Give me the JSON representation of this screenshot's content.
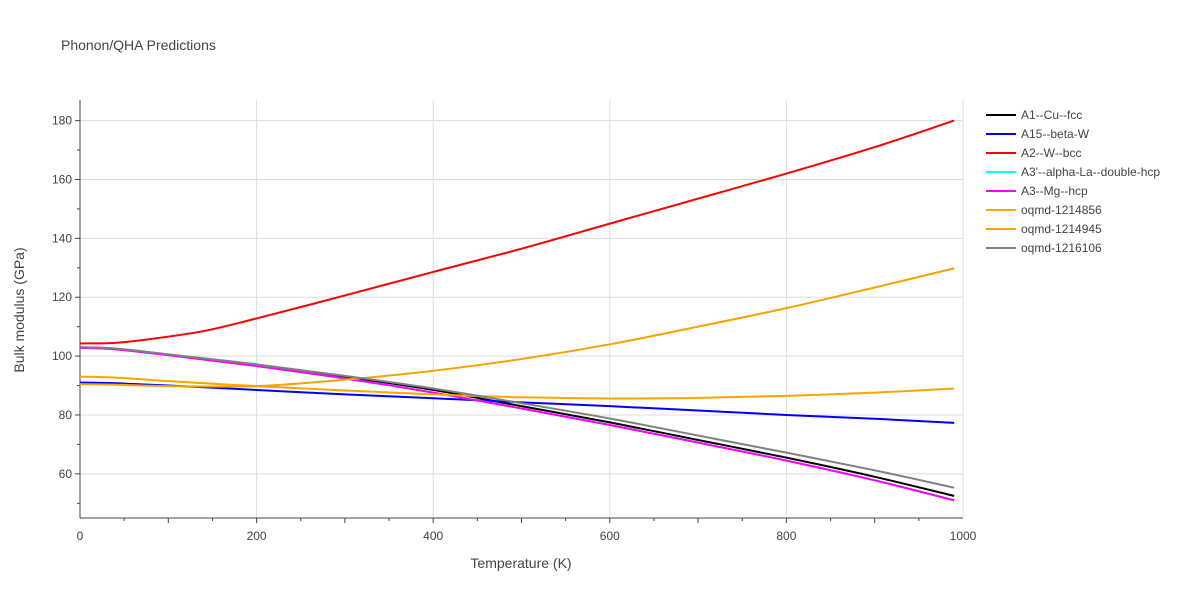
{
  "chart_data": {
    "type": "line",
    "title": "Phonon/QHA Predictions",
    "xlabel": "Temperature (K)",
    "ylabel": "Bulk modulus (GPa)",
    "xlim": [
      0,
      1000
    ],
    "ylim": [
      45,
      187
    ],
    "x_ticks": [
      0,
      200,
      400,
      600,
      800,
      1000
    ],
    "y_ticks": [
      60,
      80,
      100,
      120,
      140,
      160,
      180
    ],
    "grid": true,
    "legend_position": "right",
    "series": [
      {
        "name": "A1--Cu--fcc",
        "color": "#000000",
        "x": [
          0,
          40,
          100,
          200,
          300,
          400,
          500,
          600,
          700,
          800,
          900,
          990
        ],
        "y": [
          103,
          102.5,
          100.5,
          97,
          93,
          88.5,
          83,
          77.5,
          71.5,
          65.5,
          59,
          52.5
        ]
      },
      {
        "name": "A15--beta-W",
        "color": "#0000ff",
        "x": [
          0,
          40,
          100,
          200,
          300,
          400,
          500,
          600,
          700,
          800,
          900,
          990
        ],
        "y": [
          91,
          90.8,
          90,
          88.5,
          87,
          85.7,
          84.3,
          83,
          81.5,
          80,
          78.7,
          77.3
        ]
      },
      {
        "name": "A2--W--bcc",
        "color": "#ff0000",
        "x": [
          0,
          40,
          80,
          140,
          200,
          300,
          400,
          500,
          600,
          700,
          800,
          900,
          990
        ],
        "y": [
          104.3,
          104.5,
          105.8,
          108.5,
          112.8,
          120.6,
          128.6,
          136.5,
          145,
          153.5,
          162,
          171,
          180
        ]
      },
      {
        "name": "A3'--alpha-La--double-hcp",
        "color": "#00ffff",
        "x": [
          0,
          40,
          100,
          200,
          300,
          400,
          500,
          600,
          700,
          800,
          900,
          990
        ],
        "y": [
          102.8,
          102.3,
          100.3,
          96.6,
          92.4,
          87.6,
          82.2,
          76.6,
          70.6,
          64.5,
          57.8,
          51
        ]
      },
      {
        "name": "A3--Mg--hcp",
        "color": "#ff00ff",
        "x": [
          0,
          40,
          100,
          200,
          300,
          400,
          500,
          600,
          700,
          800,
          900,
          990
        ],
        "y": [
          102.8,
          102.3,
          100.3,
          96.6,
          92.4,
          87.6,
          82.2,
          76.6,
          70.6,
          64.5,
          57.8,
          51
        ]
      },
      {
        "name": "oqmd-1214856",
        "color": "#ffa500",
        "x": [
          0,
          40,
          100,
          200,
          300,
          400,
          500,
          600,
          700,
          800,
          900,
          990
        ],
        "y": [
          93,
          92.7,
          91.5,
          89.8,
          88.3,
          87,
          86,
          85.6,
          85.8,
          86.5,
          87.6,
          89
        ]
      },
      {
        "name": "oqmd-1214945",
        "color": "#f5a300",
        "x": [
          0,
          40,
          100,
          200,
          300,
          400,
          500,
          600,
          700,
          800,
          900,
          990
        ],
        "y": [
          90.5,
          90.3,
          89.8,
          89.8,
          92,
          95,
          99,
          104,
          110,
          116.3,
          123.3,
          129.8
        ]
      },
      {
        "name": "oqmd-1216106",
        "color": "#808080",
        "x": [
          0,
          40,
          100,
          200,
          300,
          400,
          500,
          600,
          700,
          800,
          900,
          990
        ],
        "y": [
          103,
          102.6,
          100.6,
          97.2,
          93.3,
          89,
          84,
          78.8,
          73,
          67.2,
          61.2,
          55.3
        ]
      }
    ]
  }
}
